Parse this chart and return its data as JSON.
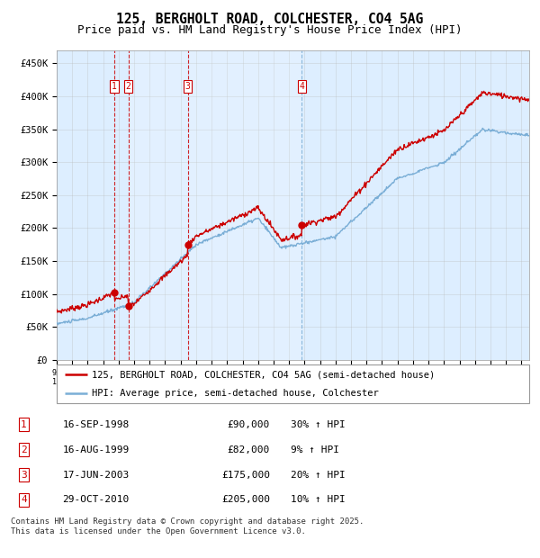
{
  "title": "125, BERGHOLT ROAD, COLCHESTER, CO4 5AG",
  "subtitle": "Price paid vs. HM Land Registry's House Price Index (HPI)",
  "ylim": [
    0,
    470000
  ],
  "yticks": [
    0,
    50000,
    100000,
    150000,
    200000,
    250000,
    300000,
    350000,
    400000,
    450000
  ],
  "ytick_labels": [
    "£0",
    "£50K",
    "£100K",
    "£150K",
    "£200K",
    "£250K",
    "£300K",
    "£350K",
    "£400K",
    "£450K"
  ],
  "hpi_color": "#7aaed6",
  "price_color": "#cc0000",
  "bg_color": "#ddeeff",
  "grid_color": "#bbbbbb",
  "purchases": [
    {
      "date": 1998.71,
      "price": 90000,
      "label": "1",
      "vline": "red"
    },
    {
      "date": 1999.62,
      "price": 82000,
      "label": "2",
      "vline": "red"
    },
    {
      "date": 2003.46,
      "price": 175000,
      "label": "3",
      "vline": "red"
    },
    {
      "date": 2010.83,
      "price": 205000,
      "label": "4",
      "vline": "blue"
    }
  ],
  "legend_line1": "125, BERGHOLT ROAD, COLCHESTER, CO4 5AG (semi-detached house)",
  "legend_line2": "HPI: Average price, semi-detached house, Colchester",
  "table_rows": [
    [
      "1",
      "16-SEP-1998",
      "£90,000",
      "30% ↑ HPI"
    ],
    [
      "2",
      "16-AUG-1999",
      "£82,000",
      "9% ↑ HPI"
    ],
    [
      "3",
      "17-JUN-2003",
      "£175,000",
      "20% ↑ HPI"
    ],
    [
      "4",
      "29-OCT-2010",
      "£205,000",
      "10% ↑ HPI"
    ]
  ],
  "footer": "Contains HM Land Registry data © Crown copyright and database right 2025.\nThis data is licensed under the Open Government Licence v3.0."
}
